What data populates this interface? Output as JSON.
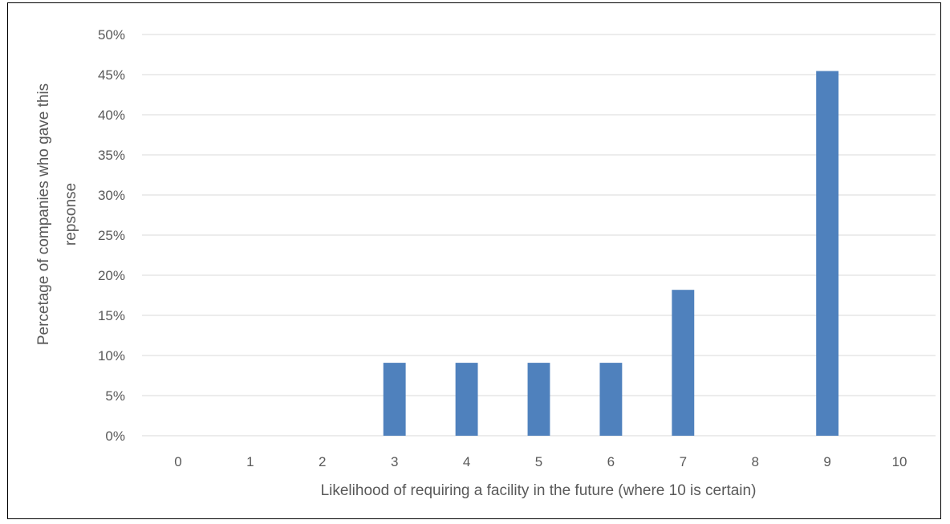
{
  "chart_data": {
    "type": "bar",
    "categories": [
      "0",
      "1",
      "2",
      "3",
      "4",
      "5",
      "6",
      "7",
      "8",
      "9",
      "10"
    ],
    "values": [
      0,
      0,
      0,
      9.09,
      9.09,
      9.09,
      9.09,
      18.18,
      0,
      45.45,
      0
    ],
    "xlabel": "Likelihood of requiring a facility in the future (where 10 is certain)",
    "ylabel_lines": [
      "Percetage of companies who gave this",
      "repsonse"
    ],
    "ylim": [
      0,
      50
    ],
    "ytick_step": 5,
    "ytick_labels": [
      "0%",
      "5%",
      "10%",
      "15%",
      "20%",
      "25%",
      "30%",
      "35%",
      "40%",
      "45%",
      "50%"
    ],
    "grid": true,
    "legend": "none",
    "bar_color": "#4f81bd",
    "grid_color": "#d9d9d9"
  }
}
